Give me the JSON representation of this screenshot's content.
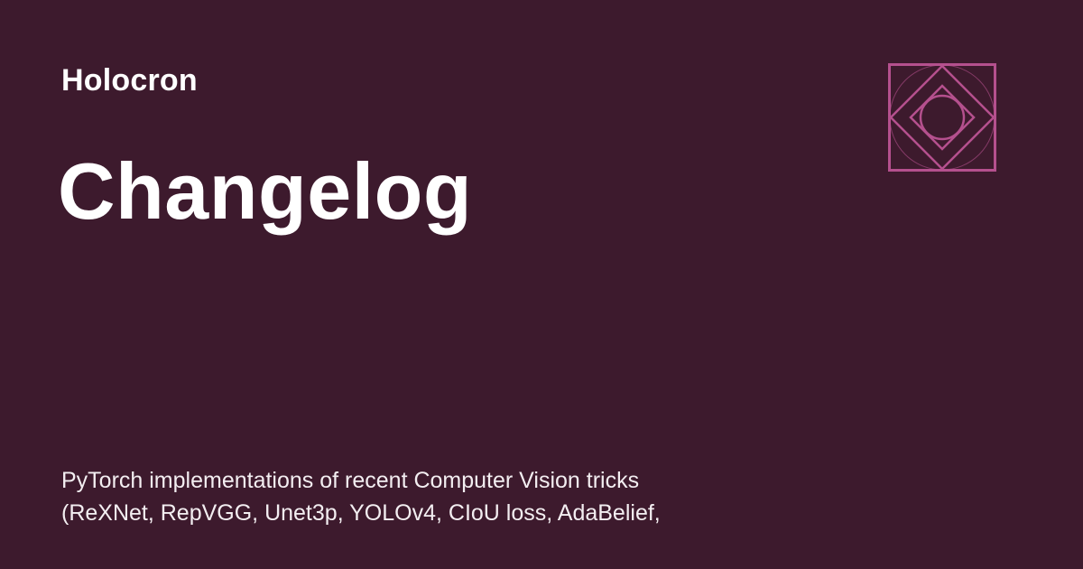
{
  "site": {
    "name": "Holocron"
  },
  "page": {
    "title": "Changelog"
  },
  "description": {
    "lines": [
      "PyTorch implementations of recent Computer Vision tricks",
      "(ReXNet, RepVGG, Unet3p, YOLOv4, CIoU loss, AdaBelief,"
    ]
  },
  "logo": {
    "icon": "holocron-logo-icon",
    "color": "#b5508e"
  },
  "colors": {
    "background": "#3d1a2d",
    "text": "#ffffff"
  }
}
